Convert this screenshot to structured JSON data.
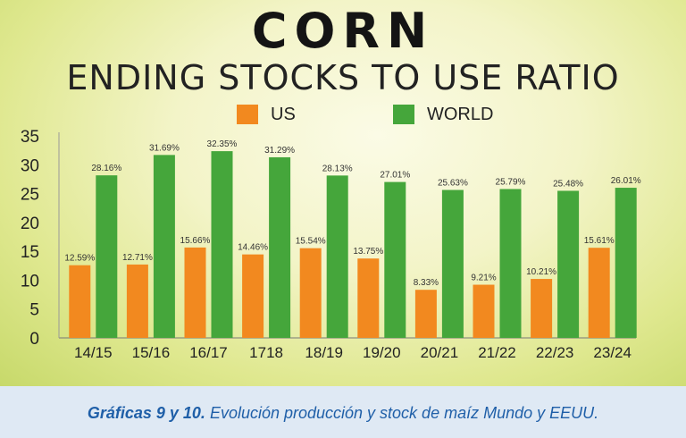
{
  "colors": {
    "us": "#f2891f",
    "world": "#45a63b"
  },
  "chart_data": {
    "type": "bar",
    "title": "CORN",
    "subtitle": "ENDING STOCKS TO USE RATIO",
    "categories": [
      "14/15",
      "15/16",
      "16/17",
      "1718",
      "18/19",
      "19/20",
      "20/21",
      "21/22",
      "22/23",
      "23/24"
    ],
    "series": [
      {
        "name": "US",
        "values": [
          12.59,
          12.71,
          15.66,
          14.46,
          15.54,
          13.75,
          8.33,
          9.21,
          10.21,
          15.61
        ],
        "labels": [
          "12.59%",
          "12.71%",
          "15.66%",
          "14.46%",
          "15.54%",
          "13.75%",
          "8.33%",
          "9.21%",
          "10.21%",
          "15.61%"
        ]
      },
      {
        "name": "WORLD",
        "values": [
          28.16,
          31.69,
          32.35,
          31.29,
          28.13,
          27.01,
          25.63,
          25.79,
          25.48,
          26.01
        ],
        "labels": [
          "28.16%",
          "31.69%",
          "32.35%",
          "31.29%",
          "28.13%",
          "27.01%",
          "25.63%",
          "25.79%",
          "25.48%",
          "26.01%"
        ]
      }
    ],
    "yticks": [
      0,
      5,
      10,
      15,
      20,
      25,
      30,
      35
    ],
    "ylim": [
      0,
      35
    ],
    "legend_position": "top",
    "grid": false
  },
  "caption": {
    "bold": "Gráficas 9 y 10.",
    "text": " Evolución producción y stock de maíz Mundo y EEUU."
  }
}
